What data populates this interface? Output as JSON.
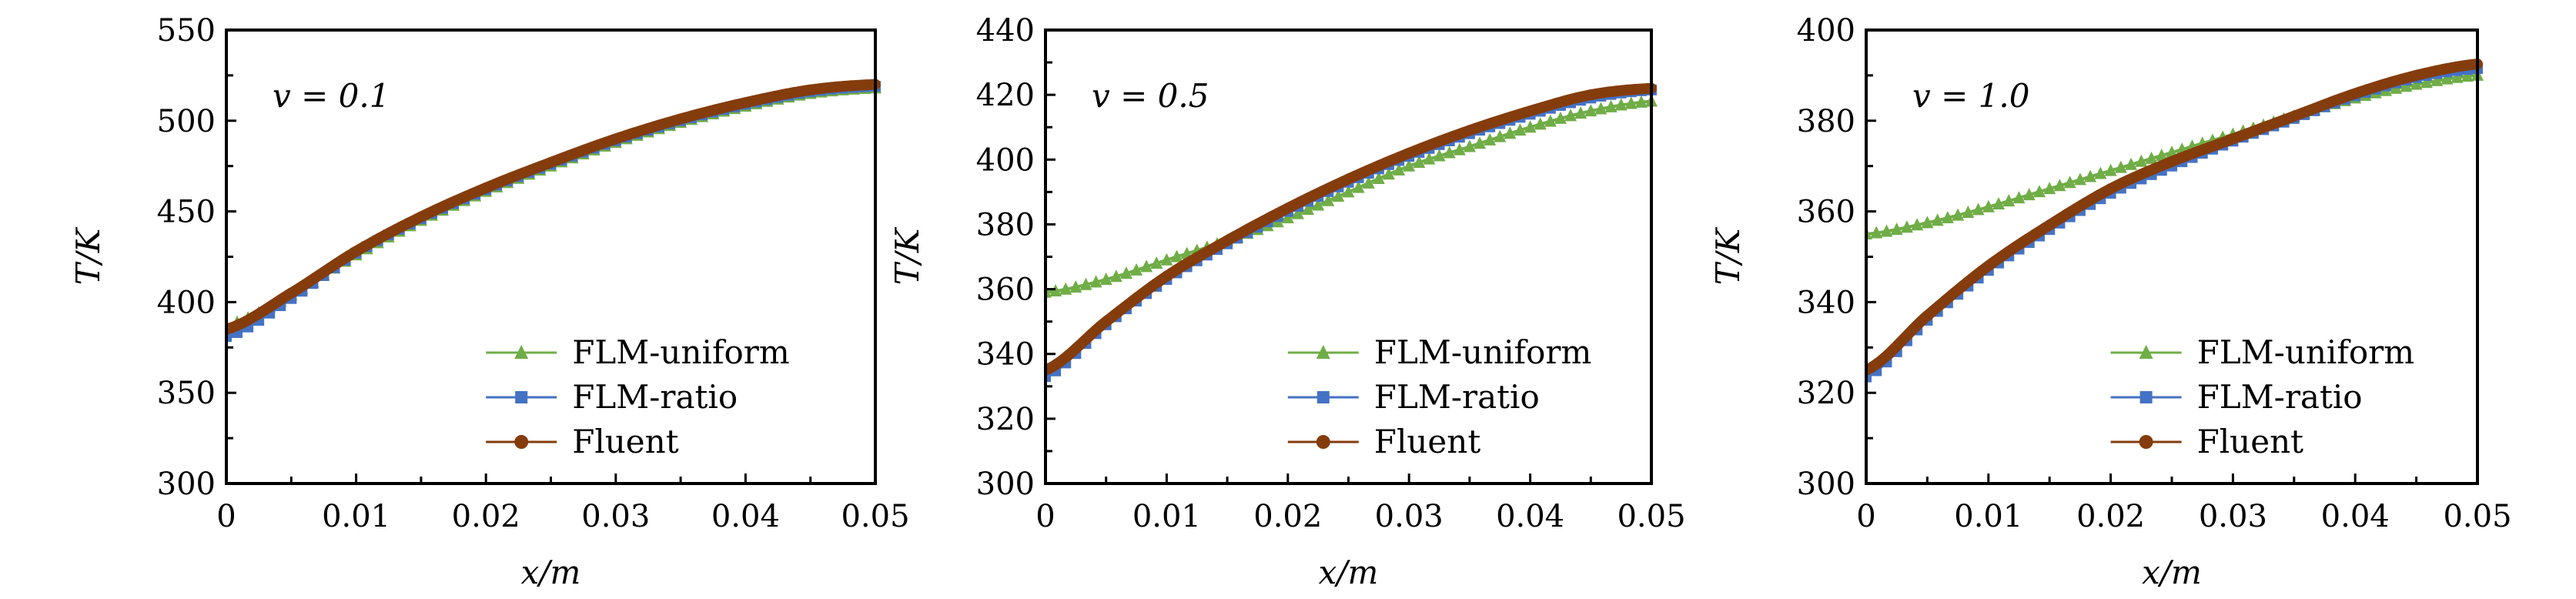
{
  "colors": {
    "uniform": "#70ad47",
    "ratio": "#4472c4",
    "fluent": "#843c0c"
  },
  "chart_data": [
    {
      "type": "line",
      "annotation": "v = 0.1",
      "xlabel": "x/m",
      "ylabel": "T/K",
      "xlim": [
        0,
        0.05
      ],
      "ylim": [
        300,
        550
      ],
      "xticks": [
        "0",
        "0.01",
        "0.02",
        "0.03",
        "0.04",
        "0.05"
      ],
      "yticks": [
        "300",
        "350",
        "400",
        "450",
        "500",
        "550"
      ],
      "ymajor": 50,
      "yminor": 25,
      "legend_position": "bottom-right",
      "x": [
        0,
        0.005,
        0.01,
        0.015,
        0.02,
        0.025,
        0.03,
        0.035,
        0.04,
        0.045,
        0.05
      ],
      "series": [
        {
          "name": "FLM-uniform",
          "marker": "triangle",
          "values": [
            387,
            404,
            426,
            445,
            461,
            475,
            488,
            499,
            508,
            515,
            518
          ]
        },
        {
          "name": "FLM-ratio",
          "marker": "square",
          "values": [
            381,
            402,
            427,
            446,
            462,
            476,
            489,
            500,
            509,
            516,
            519
          ]
        },
        {
          "name": "Fluent",
          "marker": "circle",
          "values": [
            385,
            405,
            428,
            447,
            463,
            477,
            490,
            501,
            510,
            517,
            520
          ]
        }
      ]
    },
    {
      "type": "line",
      "annotation": "v = 0.5",
      "xlabel": "x/m",
      "ylabel": "T/K",
      "xlim": [
        0,
        0.05
      ],
      "ylim": [
        300,
        440
      ],
      "xticks": [
        "0",
        "0.01",
        "0.02",
        "0.03",
        "0.04",
        "0.05"
      ],
      "yticks": [
        "300",
        "320",
        "340",
        "360",
        "380",
        "400",
        "420",
        "440"
      ],
      "ymajor": 20,
      "yminor": 10,
      "legend_position": "bottom-right",
      "x": [
        0,
        0.005,
        0.01,
        0.015,
        0.02,
        0.025,
        0.03,
        0.035,
        0.04,
        0.045,
        0.05
      ],
      "series": [
        {
          "name": "FLM-uniform",
          "marker": "triangle",
          "values": [
            359,
            363,
            369,
            375,
            382,
            390,
            398,
            404,
            410,
            415,
            418
          ]
        },
        {
          "name": "FLM-ratio",
          "marker": "square",
          "values": [
            333,
            349,
            363,
            374,
            384,
            393,
            401,
            408,
            414,
            419,
            421.5
          ]
        },
        {
          "name": "Fluent",
          "marker": "circle",
          "values": [
            335,
            350,
            364,
            375,
            385,
            394,
            402,
            409,
            415,
            420,
            422
          ]
        }
      ]
    },
    {
      "type": "line",
      "annotation": "v = 1.0",
      "xlabel": "x/m",
      "ylabel": "T/K",
      "xlim": [
        0,
        0.05
      ],
      "ylim": [
        300,
        400
      ],
      "xticks": [
        "0",
        "0.01",
        "0.02",
        "0.03",
        "0.04",
        "0.05"
      ],
      "yticks": [
        "300",
        "320",
        "340",
        "360",
        "380",
        "400"
      ],
      "ymajor": 20,
      "yminor": 10,
      "legend_position": "bottom-right",
      "x": [
        0,
        0.005,
        0.01,
        0.015,
        0.02,
        0.025,
        0.03,
        0.035,
        0.04,
        0.045,
        0.05
      ],
      "series": [
        {
          "name": "FLM-uniform",
          "marker": "triangle",
          "values": [
            355,
            357.5,
            361,
            365,
            369,
            373,
            377,
            381,
            385,
            388,
            390
          ]
        },
        {
          "name": "FLM-ratio",
          "marker": "square",
          "values": [
            323.5,
            336,
            347,
            356,
            364,
            370,
            375.5,
            380.5,
            385.5,
            389.5,
            391.5
          ]
        },
        {
          "name": "Fluent",
          "marker": "circle",
          "values": [
            325,
            337,
            348,
            357,
            365,
            371,
            376,
            381,
            386,
            390,
            392.5
          ]
        }
      ]
    }
  ]
}
